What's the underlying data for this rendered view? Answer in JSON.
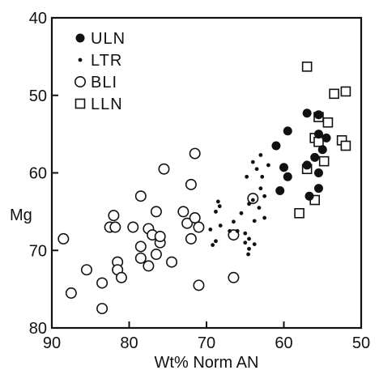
{
  "chart_data": {
    "type": "scatter",
    "title": "",
    "xlabel": "Wt% Norm AN",
    "ylabel": "Mg",
    "xlim": [
      90,
      50
    ],
    "ylim": [
      80,
      40
    ],
    "x_reversed": true,
    "y_reversed": true,
    "x_ticks": [
      "90",
      "80",
      "70",
      "60",
      "50"
    ],
    "y_ticks": [
      "40",
      "50",
      "60",
      "70",
      "80"
    ],
    "grid": false,
    "legend_position": "top-left",
    "series": [
      {
        "name": "ULN",
        "marker": "filled-circle",
        "points": [
          [
            57,
            52.3
          ],
          [
            55.5,
            52.5
          ],
          [
            54.5,
            55.5
          ],
          [
            55,
            57
          ],
          [
            55.5,
            55
          ],
          [
            56,
            58
          ],
          [
            57,
            59
          ],
          [
            55.5,
            60
          ],
          [
            61,
            56.5
          ],
          [
            59.5,
            54.6
          ],
          [
            60,
            59.3
          ],
          [
            60.5,
            62.3
          ],
          [
            59.5,
            60.5
          ],
          [
            56.7,
            63
          ],
          [
            55.5,
            62
          ]
        ]
      },
      {
        "name": "LTR",
        "marker": "small-dot",
        "points": [
          [
            64,
            58.6
          ],
          [
            63,
            57.7
          ],
          [
            63.5,
            59.5
          ],
          [
            62,
            59
          ],
          [
            62.8,
            60.5
          ],
          [
            64.8,
            60.5
          ],
          [
            63,
            62
          ],
          [
            62.5,
            63
          ],
          [
            64,
            63.5
          ],
          [
            63.2,
            64.5
          ],
          [
            64.5,
            64
          ],
          [
            62.5,
            65.8
          ],
          [
            63.8,
            66.2
          ],
          [
            65.5,
            65.2
          ],
          [
            66.5,
            66.3
          ],
          [
            68.5,
            63.7
          ],
          [
            68.3,
            64.3
          ],
          [
            68.8,
            65
          ],
          [
            68.2,
            66.8
          ],
          [
            69.5,
            67.3
          ],
          [
            68.8,
            68.8
          ],
          [
            69.2,
            69.3
          ],
          [
            67,
            67.5
          ],
          [
            66,
            67.5
          ],
          [
            65,
            67.8
          ],
          [
            64.5,
            68.5
          ],
          [
            65,
            69
          ],
          [
            64.5,
            69.8
          ],
          [
            63.8,
            69.2
          ],
          [
            64.6,
            70.5
          ]
        ]
      },
      {
        "name": "BLI",
        "marker": "open-circle",
        "points": [
          [
            88.5,
            68.5
          ],
          [
            87.5,
            75.5
          ],
          [
            85.5,
            72.5
          ],
          [
            83.5,
            74.2
          ],
          [
            83.5,
            77.5
          ],
          [
            82.5,
            67
          ],
          [
            82,
            65.5
          ],
          [
            81.8,
            67
          ],
          [
            81.5,
            71.5
          ],
          [
            81.5,
            72.5
          ],
          [
            81,
            73.5
          ],
          [
            79.5,
            67
          ],
          [
            78.5,
            63
          ],
          [
            78.5,
            71
          ],
          [
            78.5,
            69.5
          ],
          [
            77.5,
            67.2
          ],
          [
            77,
            68
          ],
          [
            77.5,
            72
          ],
          [
            76.5,
            70.5
          ],
          [
            76.5,
            65
          ],
          [
            76,
            69
          ],
          [
            76,
            68.2
          ],
          [
            75.5,
            59.5
          ],
          [
            74.5,
            71.5
          ],
          [
            73,
            65
          ],
          [
            72.5,
            66.5
          ],
          [
            72,
            61.5
          ],
          [
            72,
            68.5
          ],
          [
            71.5,
            65.8
          ],
          [
            71,
            67
          ],
          [
            71.5,
            57.5
          ],
          [
            71,
            74.5
          ],
          [
            66.5,
            68
          ],
          [
            66.5,
            73.5
          ],
          [
            64,
            63.3
          ]
        ]
      },
      {
        "name": "LLN",
        "marker": "open-square",
        "points": [
          [
            57,
            46.3
          ],
          [
            53.5,
            49.8
          ],
          [
            52,
            49.5
          ],
          [
            55.5,
            52.8
          ],
          [
            54.3,
            53.5
          ],
          [
            56,
            55.5
          ],
          [
            55.5,
            56
          ],
          [
            54.8,
            58.5
          ],
          [
            57,
            59.5
          ],
          [
            52.5,
            55.8
          ],
          [
            52,
            56.5
          ],
          [
            56,
            63.5
          ],
          [
            58,
            65.2
          ]
        ]
      }
    ]
  }
}
